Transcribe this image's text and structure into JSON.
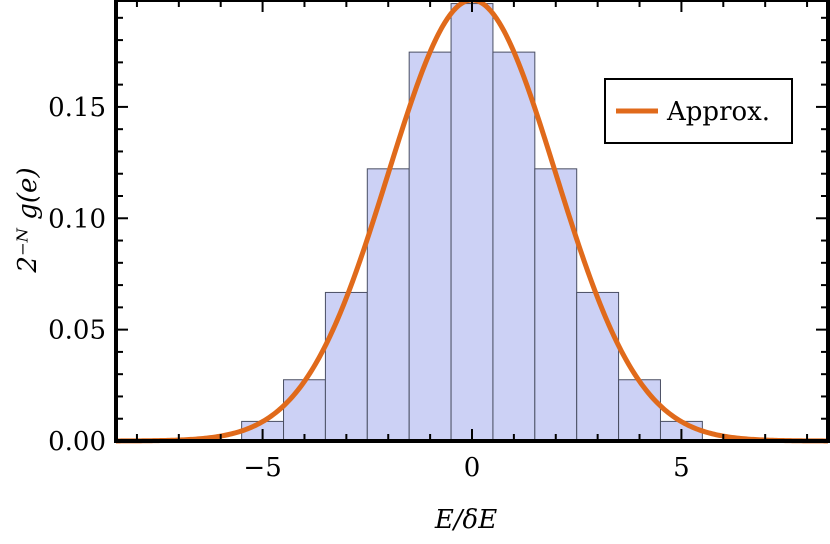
{
  "chart_data": {
    "type": "bar",
    "xlabel": "E/δE",
    "ylabel": "2⁻ᴺ g(e)",
    "xlim": [
      -8.5,
      8.5
    ],
    "ylim": [
      0,
      0.198
    ],
    "grid": false,
    "legend_position": "top-right",
    "bar_color": "#ccd1f5",
    "bar_edge_color": "#4a4f63",
    "curve_color": "#e06a1b",
    "x_ticks": [
      {
        "v": -5,
        "label": "−5"
      },
      {
        "v": 0,
        "label": "0"
      },
      {
        "v": 5,
        "label": "5"
      }
    ],
    "y_ticks": [
      {
        "v": 0,
        "label": "0.00"
      },
      {
        "v": 0.05,
        "label": "0.05"
      },
      {
        "v": 0.1,
        "label": "0.10"
      },
      {
        "v": 0.15,
        "label": "0.15"
      }
    ],
    "bins": [
      {
        "x0": -5.5,
        "x1": -4.5,
        "value": 0.0088
      },
      {
        "x0": -4.5,
        "x1": -3.5,
        "value": 0.0275
      },
      {
        "x0": -3.5,
        "x1": -2.5,
        "value": 0.0667
      },
      {
        "x0": -2.5,
        "x1": -1.5,
        "value": 0.1222
      },
      {
        "x0": -1.5,
        "x1": -0.5,
        "value": 0.1746
      },
      {
        "x0": -0.5,
        "x1": 0.5,
        "value": 0.1964
      },
      {
        "x0": 0.5,
        "x1": 1.5,
        "value": 0.1746
      },
      {
        "x0": 1.5,
        "x1": 2.5,
        "value": 0.1222
      },
      {
        "x0": 2.5,
        "x1": 3.5,
        "value": 0.0667
      },
      {
        "x0": 3.5,
        "x1": 4.5,
        "value": 0.0275
      },
      {
        "x0": 4.5,
        "x1": 5.5,
        "value": 0.0088
      }
    ],
    "series": [
      {
        "name": "Approx.",
        "type": "line",
        "peak": 0.198,
        "mean": 0,
        "sigma": 2.0
      }
    ]
  }
}
